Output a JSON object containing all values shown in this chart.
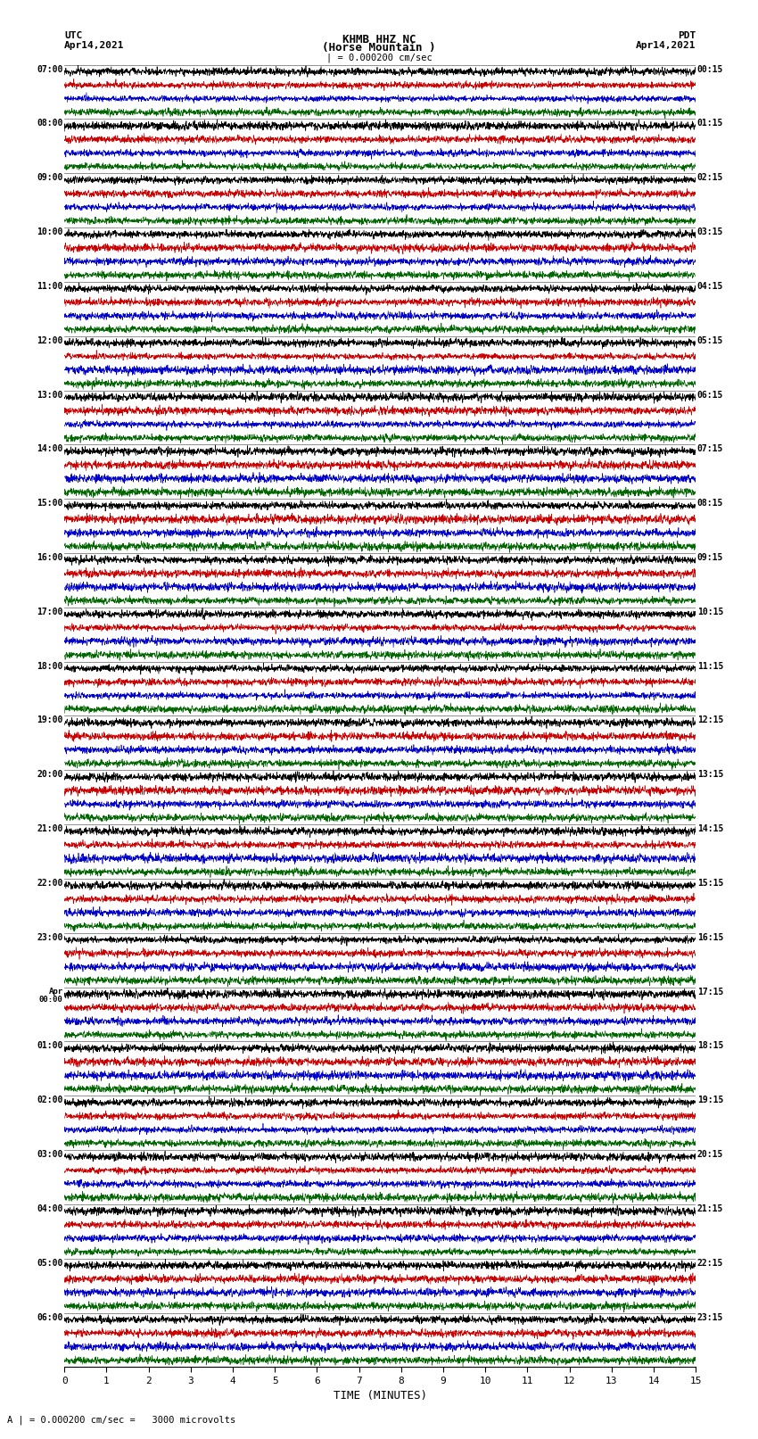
{
  "title_line1": "KHMB HHZ NC",
  "title_line2": "(Horse Mountain )",
  "title_scale": "| = 0.000200 cm/sec",
  "left_header_line1": "UTC",
  "left_header_line2": "Apr14,2021",
  "right_header_line1": "PDT",
  "right_header_line2": "Apr14,2021",
  "xlabel": "TIME (MINUTES)",
  "footer": "A | = 0.000200 cm/sec =   3000 microvolts",
  "xlim": [
    0,
    15
  ],
  "xticks": [
    0,
    1,
    2,
    3,
    4,
    5,
    6,
    7,
    8,
    9,
    10,
    11,
    12,
    13,
    14,
    15
  ],
  "colors": [
    "black",
    "#cc0000",
    "#0000cc",
    "#006600"
  ],
  "left_times": [
    "07:00",
    "08:00",
    "09:00",
    "10:00",
    "11:00",
    "12:00",
    "13:00",
    "14:00",
    "15:00",
    "16:00",
    "17:00",
    "18:00",
    "19:00",
    "20:00",
    "21:00",
    "22:00",
    "23:00",
    "Apr\n00:00",
    "01:00",
    "02:00",
    "03:00",
    "04:00",
    "05:00",
    "06:00"
  ],
  "right_times": [
    "00:15",
    "01:15",
    "02:15",
    "03:15",
    "04:15",
    "05:15",
    "06:15",
    "07:15",
    "08:15",
    "09:15",
    "10:15",
    "11:15",
    "12:15",
    "13:15",
    "14:15",
    "15:15",
    "16:15",
    "17:15",
    "18:15",
    "19:15",
    "20:15",
    "21:15",
    "22:15",
    "23:15"
  ],
  "num_rows": 24,
  "traces_per_row": 4,
  "fig_width": 8.5,
  "fig_height": 16.13,
  "bg_color": "white",
  "noise_seed": 42
}
